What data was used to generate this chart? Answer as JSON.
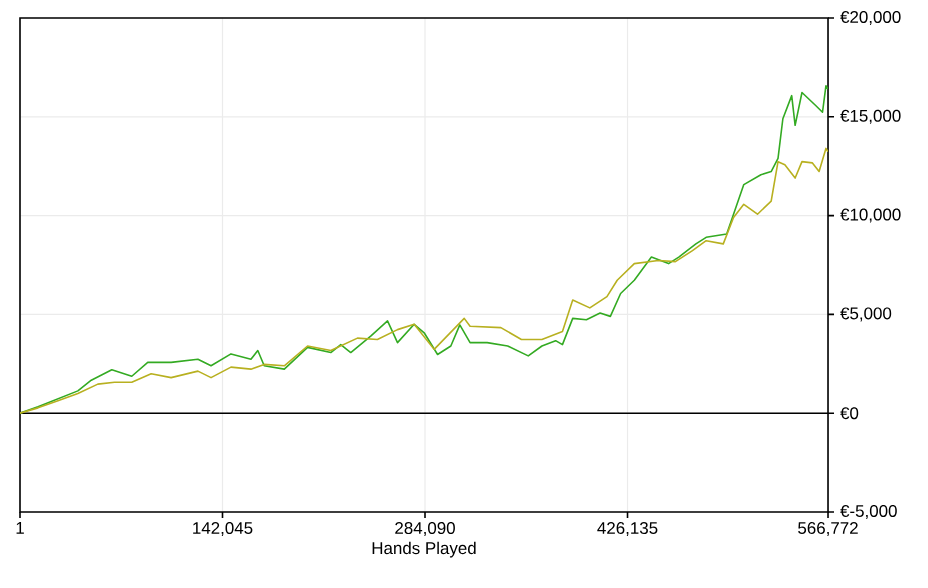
{
  "chart_data": {
    "type": "line",
    "xlabel": "Hands Played",
    "xlim": [
      1,
      566772
    ],
    "xticks": [
      {
        "value": 1,
        "label": "1"
      },
      {
        "value": 142045,
        "label": "142,045"
      },
      {
        "value": 284090,
        "label": "284,090"
      },
      {
        "value": 426135,
        "label": "426,135"
      },
      {
        "value": 566772,
        "label": "566,772"
      }
    ],
    "ylim": [
      -5000,
      20000
    ],
    "yticks": [
      {
        "value": -5000,
        "label": "€-5,000"
      },
      {
        "value": 0,
        "label": "€0"
      },
      {
        "value": 5000,
        "label": "€5,000"
      },
      {
        "value": 10000,
        "label": "€10,000"
      },
      {
        "value": 15000,
        "label": "€15,000"
      },
      {
        "value": 20000,
        "label": "€20,000"
      }
    ],
    "grid": true,
    "marker": "none",
    "line_style": "solid",
    "ref_lines": [
      {
        "axis": "y",
        "value": 0,
        "color": "#000000"
      }
    ],
    "series": [
      {
        "color": "#33aa22",
        "x": [
          1,
          12600,
          26600,
          40600,
          50000,
          64400,
          78400,
          89600,
          106000,
          124800,
          134000,
          148000,
          162000,
          166800,
          171300,
          185400,
          201700,
          218000,
          225000,
          232000,
          246000,
          257800,
          264800,
          276500,
          283500,
          292900,
          302200,
          308500,
          315700,
          327700,
          342100,
          356500,
          366100,
          375700,
          380500,
          387700,
          397300,
          406900,
          414100,
          421300,
          430900,
          442900,
          454900,
          462100,
          474100,
          481300,
          495700,
          500500,
          507700,
          519700,
          526900,
          531700,
          535100,
          541300,
          543700,
          548500,
          558100,
          562900,
          565300,
          566772
        ],
        "values": [
          0,
          330,
          730,
          1130,
          1670,
          2200,
          1870,
          2570,
          2570,
          2730,
          2400,
          3000,
          2730,
          3170,
          2400,
          2230,
          3330,
          3070,
          3470,
          3070,
          3900,
          4670,
          3570,
          4500,
          4070,
          2970,
          3400,
          4470,
          3570,
          3570,
          3400,
          2900,
          3400,
          3670,
          3470,
          4800,
          4730,
          5070,
          4900,
          6060,
          6730,
          7900,
          7570,
          7900,
          8570,
          8900,
          9070,
          10070,
          11570,
          12070,
          12230,
          12900,
          14900,
          16070,
          14570,
          16230,
          15570,
          15230,
          16570,
          16400
        ]
      },
      {
        "color": "#b8b020",
        "x": [
          1,
          12600,
          26600,
          40600,
          54600,
          66300,
          78400,
          92000,
          106000,
          124800,
          134000,
          148000,
          162000,
          171300,
          185400,
          201700,
          218000,
          236700,
          250700,
          264800,
          276500,
          290500,
          311600,
          315700,
          337300,
          351700,
          366100,
          380500,
          387700,
          399700,
          411700,
          418900,
          430900,
          447700,
          459700,
          471700,
          481300,
          493300,
          500500,
          507700,
          517300,
          526900,
          531700,
          536500,
          543700,
          548500,
          555700,
          560500,
          565300,
          566772
        ],
        "values": [
          0,
          270,
          630,
          1000,
          1470,
          1570,
          1570,
          2000,
          1800,
          2130,
          1800,
          2330,
          2230,
          2470,
          2400,
          3400,
          3170,
          3800,
          3730,
          4230,
          4500,
          3230,
          4800,
          4400,
          4330,
          3730,
          3730,
          4130,
          5730,
          5330,
          5900,
          6730,
          7570,
          7730,
          7670,
          8230,
          8730,
          8570,
          9900,
          10570,
          10070,
          10730,
          12730,
          12570,
          11900,
          12730,
          12670,
          12230,
          13400,
          13230
        ]
      }
    ]
  }
}
